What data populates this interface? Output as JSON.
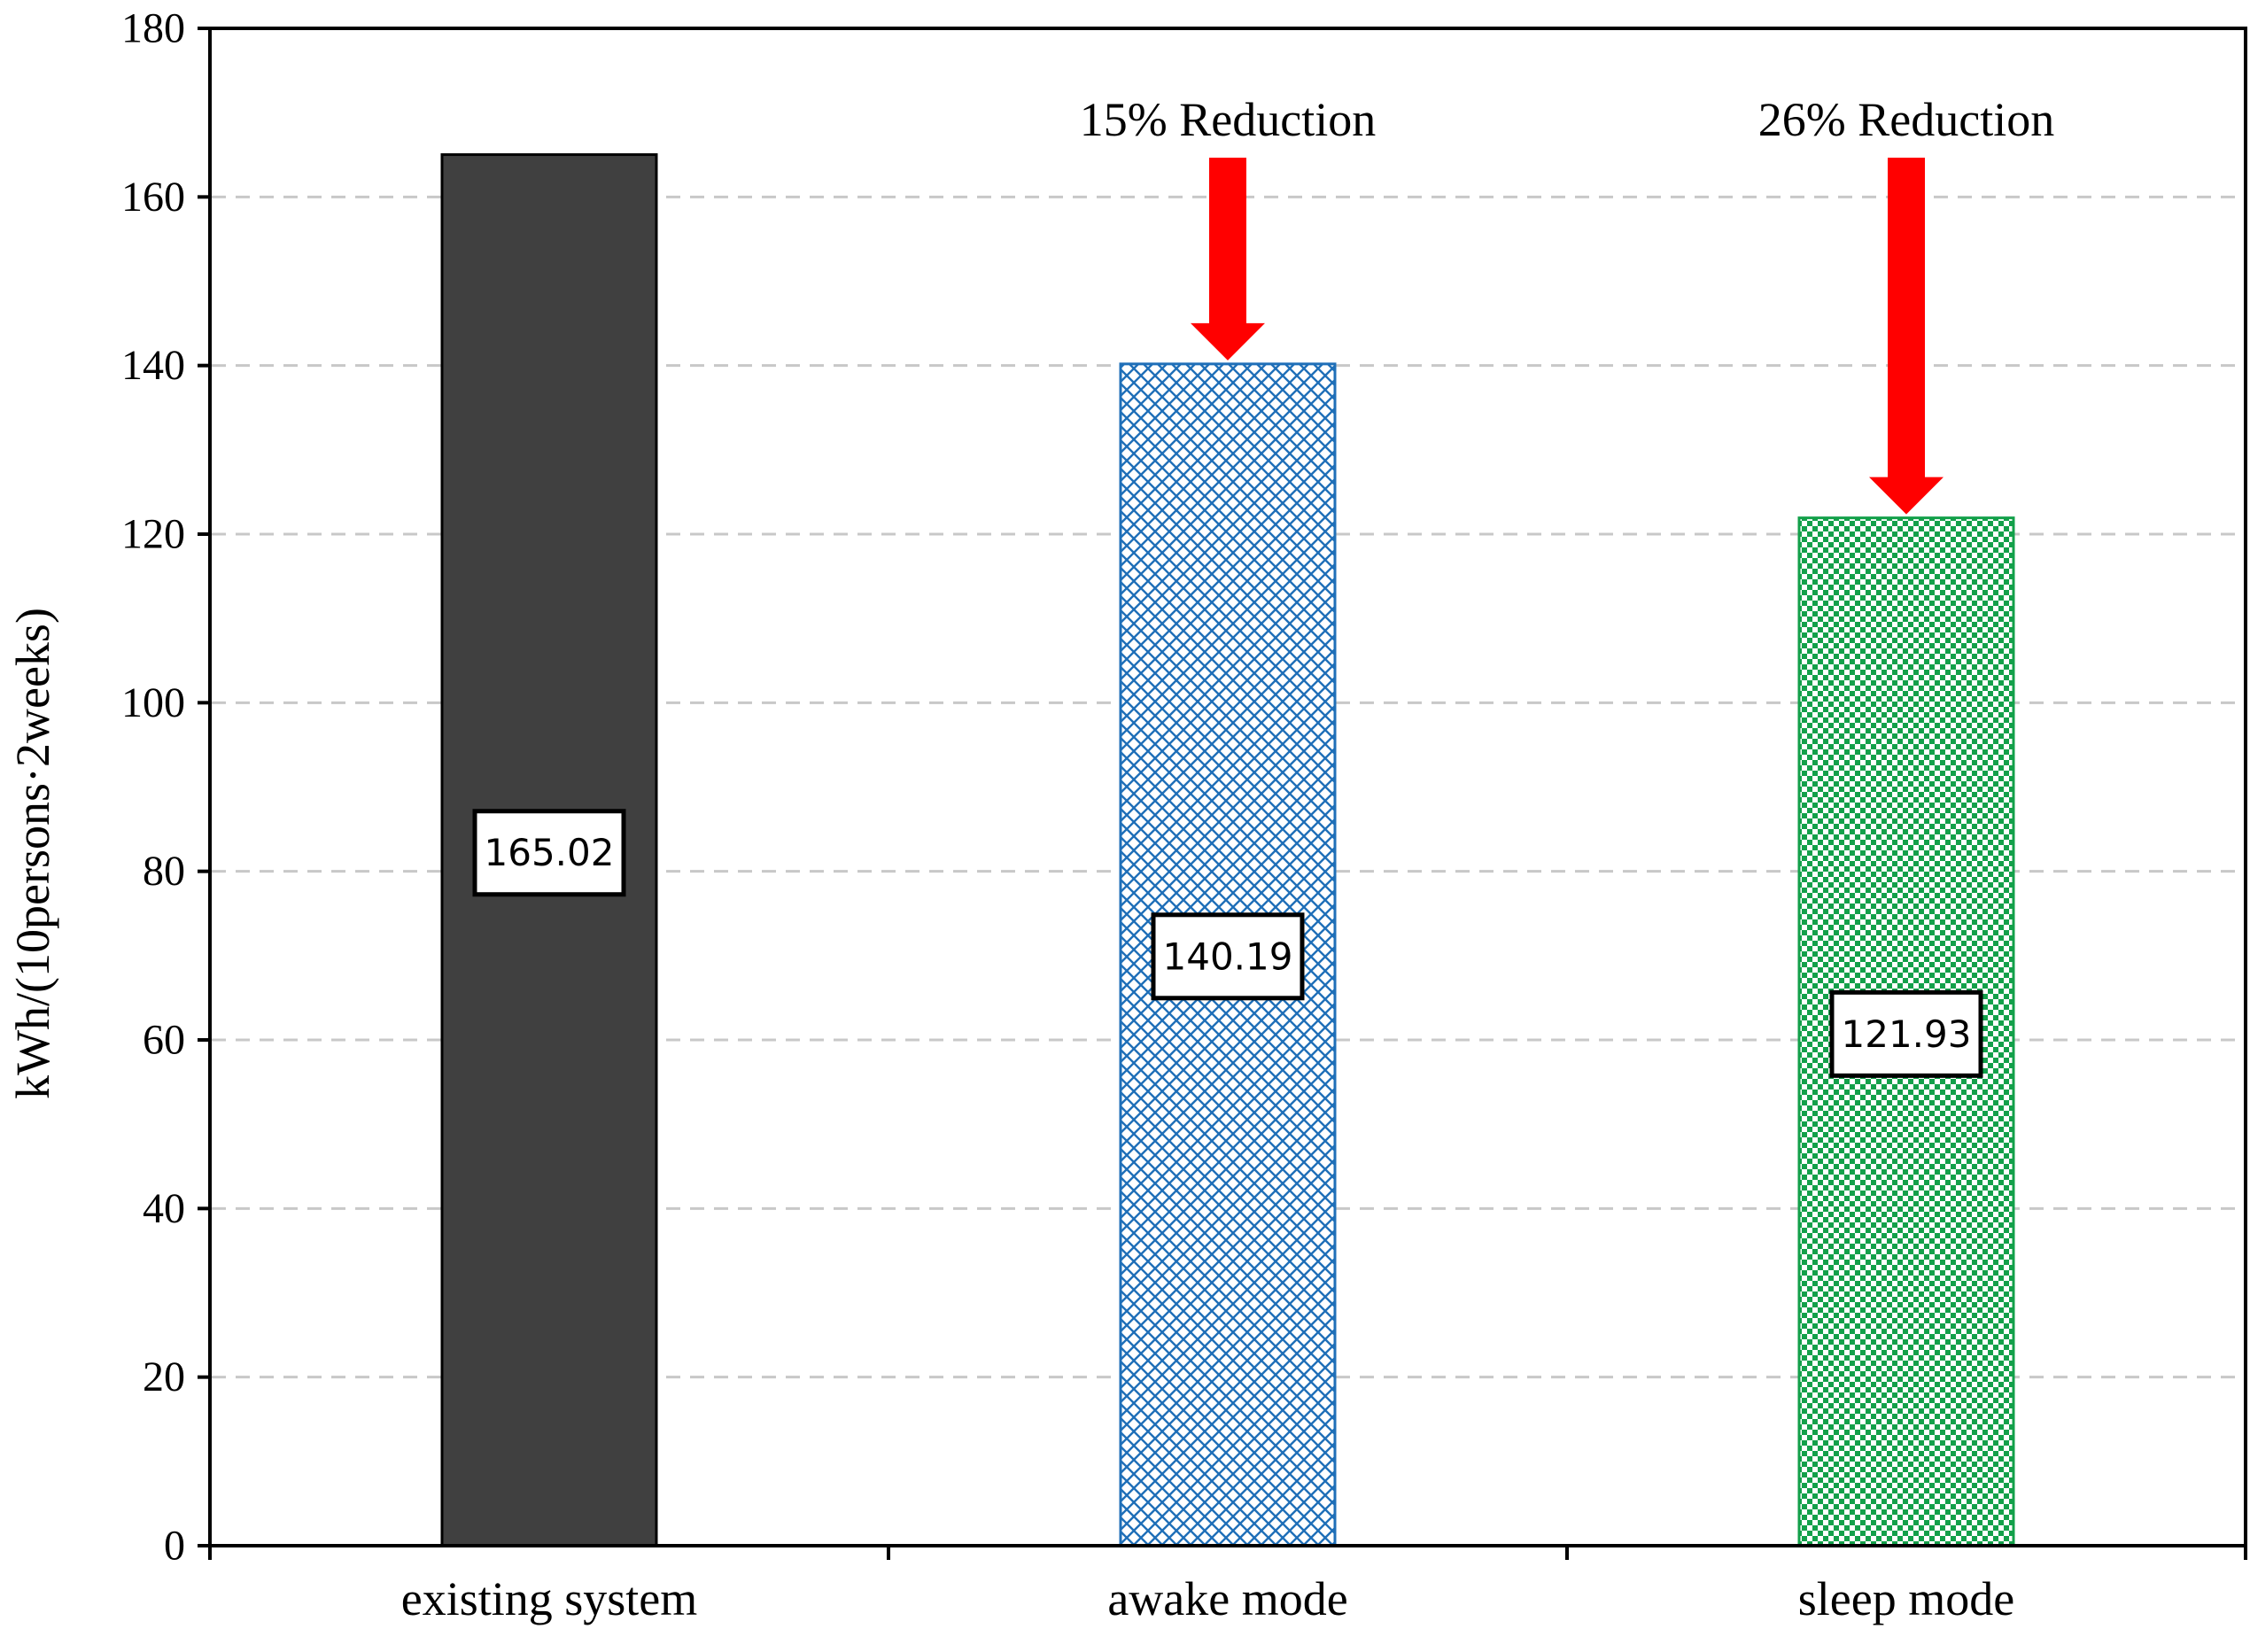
{
  "chart_data": {
    "type": "bar",
    "title": "",
    "xlabel": "",
    "ylabel": "kWh/(10persons·2weeks)",
    "categories": [
      "existing system",
      "awake mode",
      "sleep mode"
    ],
    "values": [
      165.02,
      140.19,
      121.93
    ],
    "data_labels": [
      "165.02",
      "140.19",
      "121.93"
    ],
    "ylim": [
      0,
      180
    ],
    "yticks": [
      0,
      20,
      40,
      60,
      80,
      100,
      120,
      140,
      160,
      180
    ],
    "ytick_labels": [
      "0",
      "20",
      "40",
      "60",
      "80",
      "100",
      "120",
      "140",
      "160",
      "180"
    ],
    "grid": "horizontal dashed",
    "legend": "none",
    "bar_styles": [
      {
        "fill": "solid",
        "color": "#404040",
        "stroke": "#000000"
      },
      {
        "fill": "diagonal-crosshatch",
        "color": "#1f6fb8",
        "stroke": "#1f6fb8"
      },
      {
        "fill": "checkerboard",
        "color": "#13a04a",
        "stroke": "#13a04a"
      }
    ],
    "annotations": [
      {
        "category": "awake mode",
        "text": "15% Reduction",
        "arrow": "down",
        "arrow_color": "#ff0000"
      },
      {
        "category": "sleep mode",
        "text": "26% Reduction",
        "arrow": "down",
        "arrow_color": "#ff0000"
      }
    ]
  }
}
